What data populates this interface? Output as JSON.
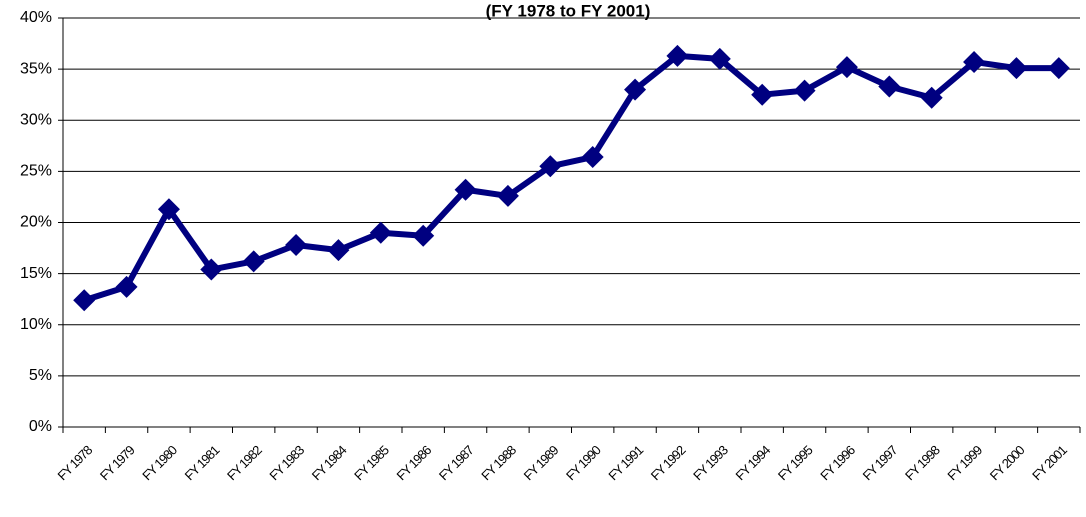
{
  "chart_data": {
    "type": "line",
    "title": "(FY 1978 to FY 2001)",
    "categories": [
      "FY 1978",
      "FY 1979",
      "FY 1980",
      "FY 1981",
      "FY 1982",
      "FY 1983",
      "FY 1984",
      "FY 1985",
      "FY 1986",
      "FY 1987",
      "FY 1988",
      "FY 1989",
      "FY 1990",
      "FY 1991",
      "FY 1992",
      "FY 1993",
      "FY 1994",
      "FY 1995",
      "FY 1996",
      "FY 1997",
      "FY 1998",
      "FY 1999",
      "FY 2000",
      "FY 2001"
    ],
    "values": [
      12.4,
      13.7,
      21.3,
      15.4,
      16.2,
      17.8,
      17.3,
      19.0,
      18.7,
      23.2,
      22.6,
      25.5,
      26.4,
      33.0,
      36.3,
      36.0,
      32.5,
      32.9,
      35.2,
      33.3,
      32.2,
      35.7,
      35.1,
      35.1
    ],
    "color": "#000080",
    "ylim": [
      0,
      40
    ],
    "yticks": [
      {
        "value": 0,
        "label": "0%"
      },
      {
        "value": 5,
        "label": "5%"
      },
      {
        "value": 10,
        "label": "10%"
      },
      {
        "value": 15,
        "label": "15%"
      },
      {
        "value": 20,
        "label": "20%"
      },
      {
        "value": 25,
        "label": "25%"
      },
      {
        "value": 30,
        "label": "30%"
      },
      {
        "value": 35,
        "label": "35%"
      },
      {
        "value": 40,
        "label": "40%"
      }
    ],
    "grid": true
  }
}
